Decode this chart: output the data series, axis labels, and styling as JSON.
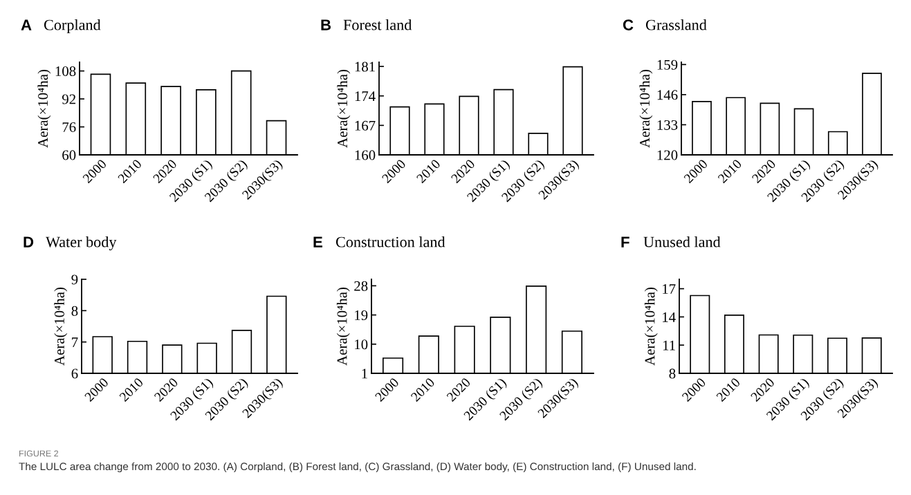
{
  "chart_data": [
    {
      "type": "bar",
      "title": "Corpland",
      "ylabel": "Aera(×10⁴ha)",
      "annotations": [
        "A"
      ],
      "categories": [
        "2000",
        "2010",
        "2020",
        "2030 (S1)",
        "2030 (S2)",
        "2030(S3)"
      ],
      "values": [
        106.1,
        101.1,
        99.1,
        97.2,
        108.0,
        79.5
      ],
      "color": "#ffffff",
      "ylim": [
        60,
        113
      ],
      "yticks": [
        60,
        76,
        92,
        108
      ]
    },
    {
      "type": "bar",
      "title": "Forest land",
      "ylabel": "Aera(×10⁴ha)",
      "annotations": [
        "B"
      ],
      "categories": [
        "2000",
        "2010",
        "2020",
        "2030 (S1)",
        "2030 (S2)",
        "2030(S3)"
      ],
      "values": [
        171.4,
        172.1,
        173.9,
        175.5,
        165.1,
        180.9
      ],
      "color": "#ffffff",
      "ylim": [
        160,
        182
      ],
      "yticks": [
        160,
        167,
        174,
        181
      ]
    },
    {
      "type": "bar",
      "title": "Grassland",
      "ylabel": "Aera(×10⁴ha)",
      "annotations": [
        "C"
      ],
      "categories": [
        "2000",
        "2010",
        "2020",
        "2030 (S1)",
        "2030 (S2)",
        "2030(S3)"
      ],
      "values": [
        143.0,
        144.7,
        142.3,
        139.9,
        130.0,
        155.2
      ],
      "color": "#ffffff",
      "ylim": [
        120,
        160
      ],
      "yticks": [
        120,
        133,
        146,
        159
      ]
    },
    {
      "type": "bar",
      "title": "Water body",
      "ylabel": "Aera(×10⁴ha)",
      "annotations": [
        "D"
      ],
      "categories": [
        "2000",
        "2010",
        "2020",
        "2030 (S1)",
        "2030 (S2)",
        "2030(S3)"
      ],
      "values": [
        7.17,
        7.02,
        6.9,
        6.96,
        7.37,
        8.46
      ],
      "color": "#ffffff",
      "ylim": [
        6,
        9
      ],
      "yticks": [
        6,
        7,
        8,
        9
      ]
    },
    {
      "type": "bar",
      "title": "Construction land",
      "ylabel": "Aera(×10⁴ha)",
      "annotations": [
        "E"
      ],
      "categories": [
        "2000",
        "2010",
        "2020",
        "2030 (S1)",
        "2030 (S2)",
        "2030(S3)"
      ],
      "values": [
        5.7,
        12.5,
        15.5,
        18.3,
        27.9,
        14.0
      ],
      "color": "#ffffff",
      "ylim": [
        1,
        30
      ],
      "yticks": [
        1,
        10,
        19,
        28
      ]
    },
    {
      "type": "bar",
      "title": "Unused land",
      "ylabel": "Aera(×10⁴ha)",
      "annotations": [
        "F",
        "FIGURE 2",
        "The LULC area change from 2000 to 2030. (A) Corpland, (B) Forest land, (C) Grassland, (D) Water body, (E) Construction land, (F) Unused land."
      ],
      "categories": [
        "2000",
        "2010",
        "2020",
        "2030 (S1)",
        "2030 (S2)",
        "2030(S3)"
      ],
      "values": [
        16.27,
        14.18,
        12.08,
        12.06,
        11.73,
        11.76
      ],
      "color": "#ffffff",
      "ylim": [
        8,
        18
      ],
      "yticks": [
        8,
        11,
        14,
        17
      ]
    }
  ]
}
